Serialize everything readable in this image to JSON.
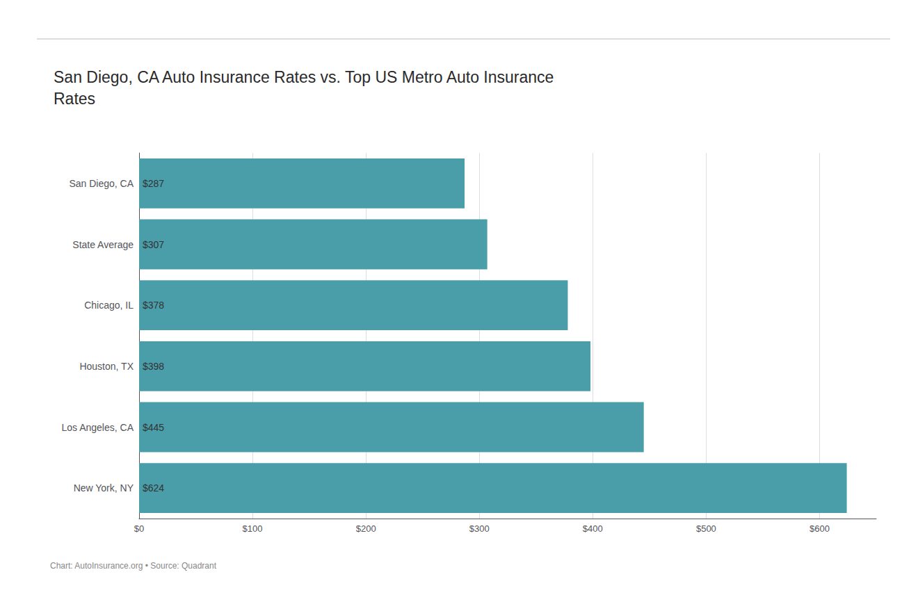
{
  "chart_data": {
    "type": "bar",
    "title": "San Diego, CA Auto Insurance Rates vs. Top US Metro Auto Insurance\nRates",
    "orientation": "horizontal",
    "categories": [
      "San Diego, CA",
      "State Average",
      "Chicago, IL",
      "Houston, TX",
      "Los Angeles, CA",
      "New York, NY"
    ],
    "values": [
      287,
      307,
      378,
      398,
      445,
      624
    ],
    "value_labels": [
      "$287",
      "$307",
      "$378",
      "$398",
      "$445",
      "$624"
    ],
    "data_labels": true,
    "color": "#4a9eaa",
    "xlim": [
      0,
      650
    ],
    "xticks": [
      {
        "value": 0,
        "label": "$0"
      },
      {
        "value": 100,
        "label": "$100"
      },
      {
        "value": 200,
        "label": "$200"
      },
      {
        "value": 300,
        "label": "$300"
      },
      {
        "value": 400,
        "label": "$400"
      },
      {
        "value": 500,
        "label": "$500"
      },
      {
        "value": 600,
        "label": "$600"
      }
    ],
    "grid": true,
    "annotations": [
      "Chart: AutoInsurance.org • Source: Quadrant"
    ]
  }
}
